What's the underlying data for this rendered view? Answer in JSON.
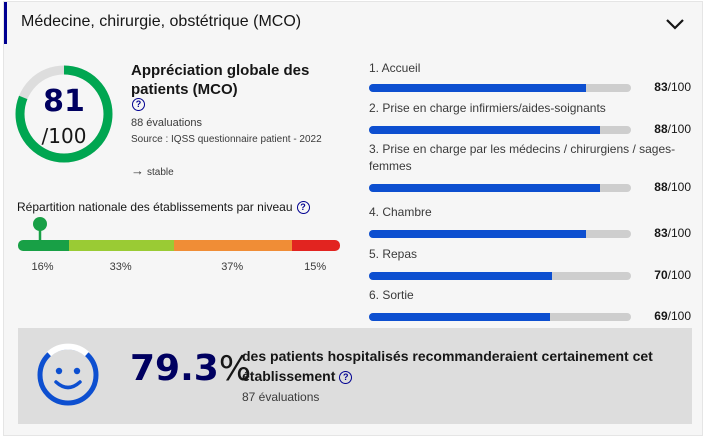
{
  "header": {
    "title": "Médecine, chirurgie, obstétrique (MCO)",
    "toggle_icon": "chevron-down-icon"
  },
  "overall": {
    "score": "81",
    "denominator": "/100",
    "score_value": 81,
    "title": "Appréciation globale des patients (MCO)",
    "help_icon": "question-icon",
    "evaluations": "88 évaluations",
    "source": "Source : IQSS questionnaire patient - 2022",
    "trend_icon": "arrow-right-icon",
    "trend": "stable",
    "gauge_color": "#00a651",
    "gauge_track_color": "#dddddd"
  },
  "repartition": {
    "label": "Répartition nationale des établissements par niveau",
    "help_icon": "question-icon",
    "pin_icon": "map-pin-icon",
    "segments": [
      {
        "pct": "16%",
        "value": 16,
        "color": "#18a046"
      },
      {
        "pct": "33%",
        "value": 33,
        "color": "#9acb34"
      },
      {
        "pct": "37%",
        "value": 37,
        "color": "#f08d36"
      },
      {
        "pct": "15%",
        "value": 15,
        "color": "#e22420"
      }
    ]
  },
  "criteria": [
    {
      "label": "1. Accueil",
      "score": "83",
      "suffix": "/100",
      "value": 83
    },
    {
      "label": "2. Prise en charge infirmiers/aides-soignants",
      "score": "88",
      "suffix": "/100",
      "value": 88
    },
    {
      "label": "3. Prise en charge par les médecins / chirurgiens / sages-femmes",
      "score": "88",
      "suffix": "/100",
      "value": 88
    },
    {
      "label": "4. Chambre",
      "score": "83",
      "suffix": "/100",
      "value": 83
    },
    {
      "label": "5. Repas",
      "score": "70",
      "suffix": "/100",
      "value": 70
    },
    {
      "label": "6. Sortie",
      "score": "69",
      "suffix": "/100",
      "value": 69
    }
  ],
  "recommendation": {
    "value": "79.3",
    "unit": "%",
    "text": "des patients hospitalisés recommanderaient certainement cet établissement",
    "help_icon": "question-icon",
    "evaluations": "87 évaluations",
    "smiley_icon": "smiley-icon",
    "color": "#0d4fd0"
  }
}
